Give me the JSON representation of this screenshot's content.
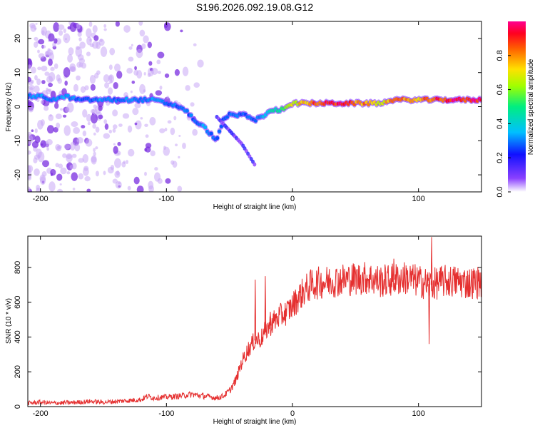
{
  "title": "S196.2026.092.19.08.G12",
  "colors": {
    "snr_line": "#e53030",
    "ridge_core": "#e0202a",
    "cloud": "#7a2ee0",
    "frame": "#000000"
  },
  "chart_data": [
    {
      "type": "heatmap",
      "title": "S196.2026.092.19.08.G12",
      "xlabel": "Height of straight line (km)",
      "ylabel": "Frequency (Hz)",
      "xlim": [
        -210,
        150
      ],
      "ylim": [
        -25,
        25
      ],
      "xticks": [
        -200,
        -100,
        0,
        100
      ],
      "yticks": [
        -20,
        -10,
        0,
        10,
        20
      ],
      "ridge": {
        "x": [
          -210,
          -200,
          -190,
          -180,
          -170,
          -160,
          -150,
          -140,
          -130,
          -120,
          -110,
          -100,
          -90,
          -85,
          -80,
          -75,
          -70,
          -65,
          -60,
          -55,
          -50,
          -45,
          -40,
          -35,
          -30,
          -25,
          -20,
          -15,
          -10,
          -5,
          0,
          10,
          20,
          30,
          40,
          50,
          60,
          70,
          80,
          90,
          100,
          110,
          120,
          130,
          140,
          150
        ],
        "y": [
          3,
          3,
          2,
          3,
          2,
          2,
          2,
          2,
          2,
          2,
          2,
          1,
          0,
          -1,
          -3,
          -5,
          -6,
          -8,
          -10,
          -4,
          -2,
          -3,
          -2,
          -3,
          -4,
          -3,
          -2,
          -1,
          -1,
          0,
          1,
          1,
          1,
          1,
          1,
          1,
          1,
          1,
          2,
          2,
          2,
          2,
          2,
          2,
          2,
          2
        ],
        "amplitude": [
          0.3,
          0.35,
          0.3,
          0.35,
          0.3,
          0.3,
          0.35,
          0.3,
          0.35,
          0.3,
          0.35,
          0.3,
          0.3,
          0.3,
          0.3,
          0.3,
          0.35,
          0.3,
          0.3,
          0.3,
          0.3,
          0.3,
          0.3,
          0.3,
          0.3,
          0.35,
          0.4,
          0.45,
          0.5,
          0.6,
          0.7,
          0.8,
          0.9,
          0.92,
          0.95,
          0.85,
          0.8,
          0.75,
          0.8,
          0.85,
          0.8,
          0.9,
          0.95,
          0.95,
          0.95,
          0.95
        ]
      },
      "branch": {
        "x": [
          -60,
          -55,
          -50,
          -45,
          -40,
          -35,
          -30
        ],
        "y": [
          -3,
          -5,
          -7,
          -9,
          -11,
          -14,
          -17
        ]
      },
      "colorbar": {
        "label": "Normalized spectral amplitude",
        "range": [
          0,
          1
        ],
        "ticks": [
          0.0,
          0.2,
          0.4,
          0.6,
          0.8
        ],
        "tick_labels": [
          "0.0",
          "0.2",
          "0.4",
          "0.6",
          "0.8"
        ]
      }
    },
    {
      "type": "line",
      "xlabel": "Height of straight line (km)",
      "ylabel": "SNR (10 * v/v)",
      "xlim": [
        -210,
        150
      ],
      "ylim": [
        0,
        980
      ],
      "xticks": [
        -200,
        -100,
        0,
        100
      ],
      "yticks": [
        0,
        200,
        400,
        600,
        800
      ],
      "series": [
        {
          "name": "SNR",
          "x": [
            -210,
            -200,
            -190,
            -180,
            -170,
            -160,
            -150,
            -140,
            -130,
            -120,
            -115,
            -110,
            -100,
            -90,
            -80,
            -70,
            -60,
            -55,
            -50,
            -45,
            -40,
            -35,
            -30,
            -25,
            -20,
            -15,
            -10,
            -5,
            0,
            5,
            10,
            15,
            20,
            30,
            40,
            50,
            60,
            70,
            80,
            90,
            100,
            105,
            110,
            115,
            120,
            130,
            140,
            150
          ],
          "y": [
            20,
            25,
            20,
            22,
            25,
            30,
            25,
            30,
            35,
            40,
            60,
            50,
            55,
            60,
            70,
            60,
            50,
            60,
            90,
            150,
            260,
            330,
            380,
            390,
            450,
            490,
            520,
            540,
            580,
            630,
            670,
            700,
            710,
            720,
            730,
            735,
            740,
            720,
            730,
            740,
            720,
            710,
            700,
            710,
            720,
            720,
            710,
            720
          ]
        }
      ],
      "spikes": [
        {
          "x": -30,
          "y": 730
        },
        {
          "x": -22,
          "y": 750
        },
        {
          "x": -18,
          "y": 545
        },
        {
          "x": 80,
          "y": 850
        },
        {
          "x": 110,
          "y": 975
        },
        {
          "x": 108,
          "y": 360
        }
      ]
    }
  ]
}
